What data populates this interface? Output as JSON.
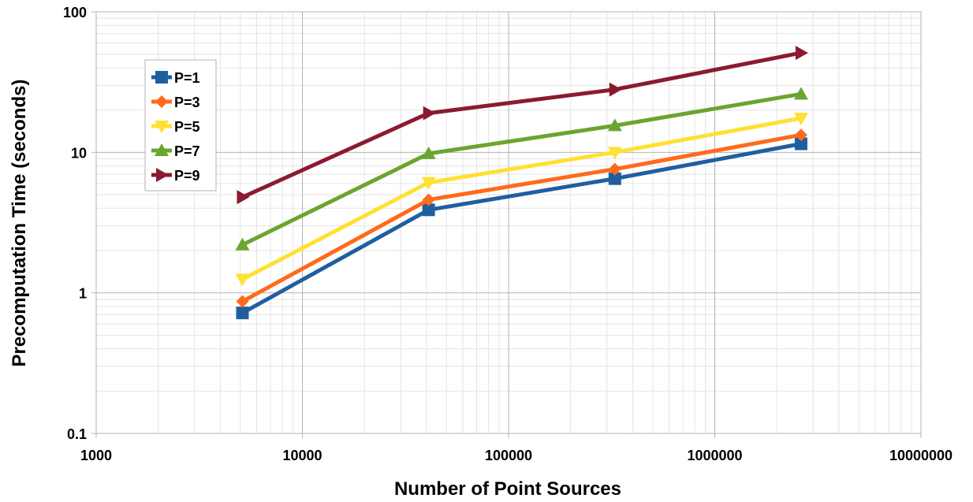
{
  "chart_data": {
    "type": "line",
    "x_scale": "log",
    "y_scale": "log",
    "xlim": [
      1000,
      10000000
    ],
    "ylim": [
      0.1,
      100
    ],
    "grid": true,
    "legend_position": "top-left",
    "xlabel": "Number of Point Sources",
    "ylabel": "Precomputation Time (seconds)",
    "x_ticks": [
      "1000",
      "10000",
      "100000",
      "1000000",
      "10000000"
    ],
    "y_ticks": [
      "0.1",
      "1",
      "10",
      "100"
    ],
    "x": [
      5120,
      40960,
      327680,
      2621440
    ],
    "series": [
      {
        "name": "P=1",
        "color": "#1f5fa0",
        "marker": "square",
        "values": [
          0.72,
          3.9,
          6.5,
          11.5
        ]
      },
      {
        "name": "P=3",
        "color": "#ff6a1c",
        "marker": "diamond",
        "values": [
          0.87,
          4.6,
          7.6,
          13.3
        ]
      },
      {
        "name": "P=5",
        "color": "#ffe033",
        "marker": "triangle-down",
        "values": [
          1.25,
          6.1,
          10.0,
          17.5
        ]
      },
      {
        "name": "P=7",
        "color": "#6aa52f",
        "marker": "triangle-up",
        "values": [
          2.2,
          9.8,
          15.5,
          26.0
        ]
      },
      {
        "name": "P=9",
        "color": "#8b1a30",
        "marker": "triangle-right",
        "values": [
          4.8,
          19.0,
          28.0,
          51.0
        ]
      }
    ]
  }
}
